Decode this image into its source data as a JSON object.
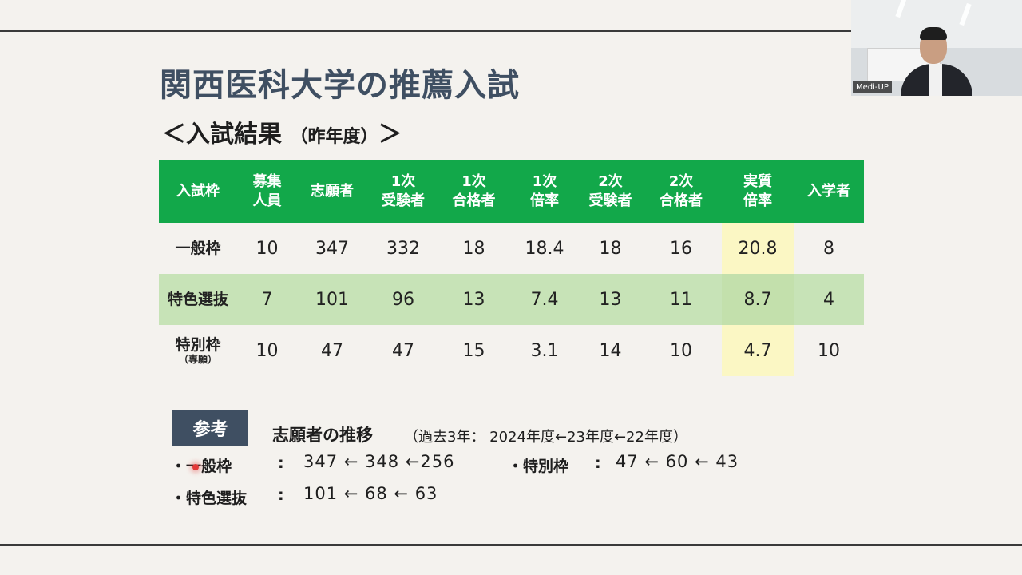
{
  "slide": {
    "title": "関西医科大学の推薦入試",
    "subtitle_main": "＜入試結果",
    "subtitle_small": "（昨年度）",
    "subtitle_end": "＞"
  },
  "table": {
    "headers": [
      "入試枠",
      "募集\n人員",
      "志願者",
      "1次\n受験者",
      "1次\n合格者",
      "1次\n倍率",
      "2次\n受験者",
      "2次\n合格者",
      "実質\n倍率",
      "入学者"
    ],
    "rows": [
      {
        "label": "一般枠",
        "sub": "",
        "values": [
          "10",
          "347",
          "332",
          "18",
          "18.4",
          "18",
          "16",
          "20.8",
          "8"
        ]
      },
      {
        "label": "特色選抜",
        "sub": "",
        "values": [
          "7",
          "101",
          "96",
          "13",
          "7.4",
          "13",
          "11",
          "8.7",
          "4"
        ]
      },
      {
        "label": "特別枠",
        "sub": "（専願）",
        "values": [
          "10",
          "47",
          "47",
          "15",
          "3.1",
          "14",
          "10",
          "4.7",
          "10"
        ]
      }
    ]
  },
  "reference": {
    "badge": "参考",
    "trend_title": "志願者の推移",
    "trend_note": "（過去3年： 2024年度←23年度←22年度）",
    "items": [
      {
        "label": "・一般枠",
        "values": "347 ← 348 ←256"
      },
      {
        "label": "・特別枠",
        "values": "47 ← 60 ← 43"
      },
      {
        "label": "・特色選抜",
        "values": "101 ←  68  ←  63"
      }
    ]
  },
  "video": {
    "participant_name": "Medi-UP"
  },
  "colors": {
    "header_green": "#12a84a",
    "alt_row_green": "#c7e3b7",
    "highlight_yellow": "#fbf7c4",
    "title_navy": "#3f4f62"
  }
}
